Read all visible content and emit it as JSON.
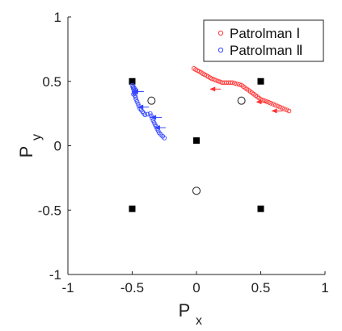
{
  "chart_data": {
    "type": "scatter",
    "title": "",
    "xlabel": "P",
    "xlabel_sub": "x",
    "ylabel": "P",
    "ylabel_sub": "y",
    "xlim": [
      -1,
      1
    ],
    "ylim": [
      -1,
      1
    ],
    "xticks": [
      -1,
      -0.5,
      0,
      0.5,
      1
    ],
    "yticks": [
      -1,
      -0.5,
      0,
      0.5,
      1
    ],
    "xtick_labels": [
      "-1",
      "-0.5",
      "0",
      "0.5",
      "1"
    ],
    "ytick_labels": [
      "-1",
      "-0.5",
      "0",
      "0.5",
      "1"
    ],
    "grid": false,
    "legend_position": "top-right",
    "black_squares": [
      [
        -0.5,
        0.5
      ],
      [
        0.5,
        0.5
      ],
      [
        0.0,
        0.04
      ],
      [
        -0.5,
        -0.49
      ],
      [
        0.5,
        -0.49
      ]
    ],
    "open_circles": [
      [
        -0.35,
        0.35
      ],
      [
        0.35,
        0.35
      ],
      [
        0.0,
        -0.35
      ]
    ],
    "series": [
      {
        "name": "Patrolman Ⅰ",
        "color": "#ff3333",
        "path": [
          [
            -0.02,
            0.6
          ],
          [
            0.05,
            0.56
          ],
          [
            0.12,
            0.52
          ],
          [
            0.2,
            0.49
          ],
          [
            0.28,
            0.49
          ],
          [
            0.35,
            0.47
          ],
          [
            0.42,
            0.42
          ],
          [
            0.5,
            0.36
          ],
          [
            0.58,
            0.33
          ],
          [
            0.65,
            0.3
          ],
          [
            0.72,
            0.27
          ]
        ],
        "arrows": [
          [
            0.14,
            0.44
          ],
          [
            0.5,
            0.34
          ],
          [
            0.62,
            0.27
          ]
        ]
      },
      {
        "name": "Patrolman Ⅱ",
        "color": "#3344ff",
        "path": [
          [
            -0.25,
            0.06
          ],
          [
            -0.29,
            0.1
          ],
          [
            -0.33,
            0.18
          ],
          [
            -0.36,
            0.25
          ],
          [
            -0.4,
            0.24
          ],
          [
            -0.44,
            0.29
          ],
          [
            -0.47,
            0.36
          ],
          [
            -0.49,
            0.44
          ],
          [
            -0.5,
            0.47
          ],
          [
            -0.47,
            0.43
          ],
          [
            -0.49,
            0.4
          ]
        ],
        "arrows": [
          [
            -0.46,
            0.42
          ],
          [
            -0.42,
            0.3
          ],
          [
            -0.32,
            0.22
          ],
          [
            -0.29,
            0.14
          ]
        ]
      }
    ]
  }
}
